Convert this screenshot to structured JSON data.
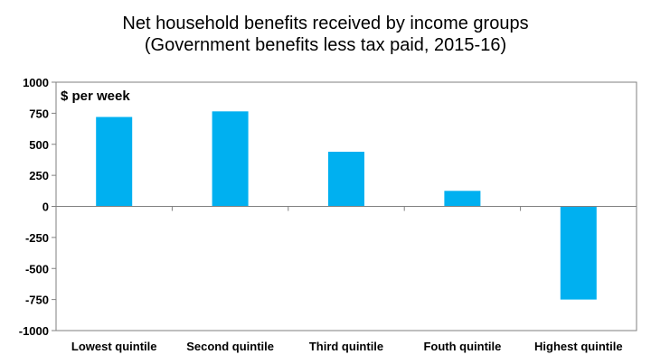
{
  "chart_data": {
    "type": "bar",
    "title_line1": "Net household benefits received by income groups",
    "title_line2": "(Government benefits less tax paid, 2015-16)",
    "unit_label": "$ per week",
    "categories": [
      "Lowest quintile",
      "Second quintile",
      "Third quintile",
      "Fouth quintile",
      "Highest quintile"
    ],
    "values": [
      720,
      765,
      440,
      125,
      -750
    ],
    "ylim": [
      -1000,
      1000
    ],
    "yticks": [
      "1000",
      "750",
      "500",
      "250",
      "0",
      "-250",
      "-500",
      "-750",
      "-1000"
    ],
    "ytick_values": [
      1000,
      750,
      500,
      250,
      0,
      -250,
      -500,
      -750,
      -1000
    ],
    "grid": false,
    "bar_color": "#00B0F0"
  }
}
